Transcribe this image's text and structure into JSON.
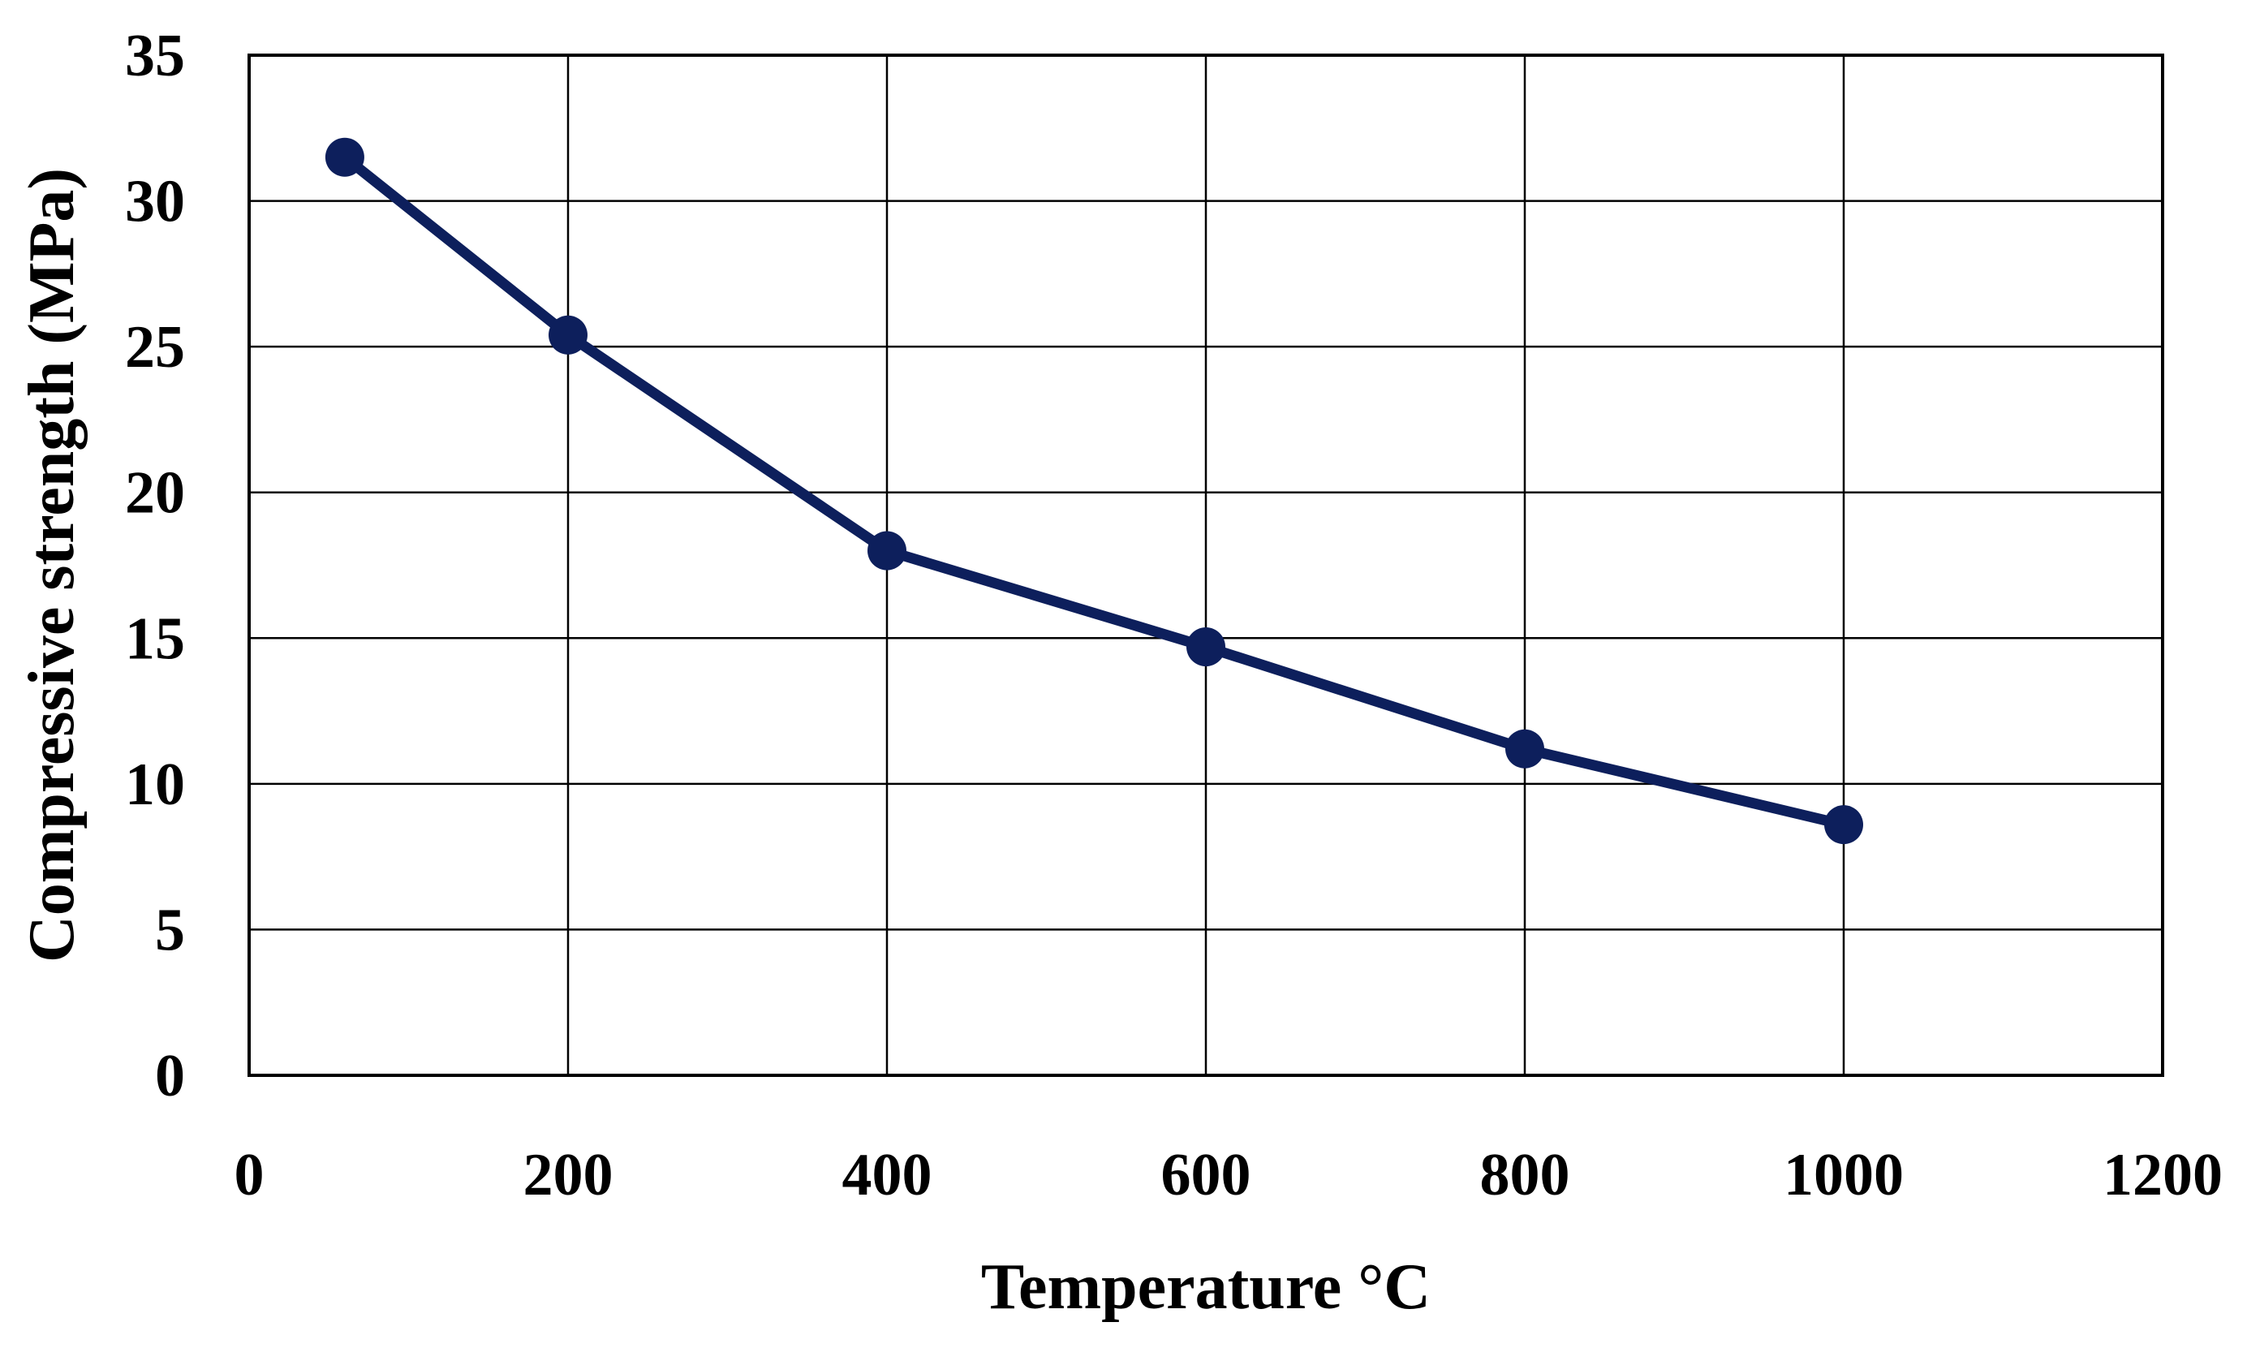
{
  "chart_data": {
    "type": "line",
    "title": "",
    "xlabel": "Temperature °C",
    "ylabel": "Compressive strength (MPa)",
    "xlim": [
      0,
      1200
    ],
    "ylim": [
      0,
      35
    ],
    "xticks": [
      0,
      200,
      400,
      600,
      800,
      1000,
      1200
    ],
    "yticks": [
      0,
      5,
      10,
      15,
      20,
      25,
      30,
      35
    ],
    "grid": true,
    "legend": "none",
    "series": [
      {
        "name": "Compressive strength",
        "color": "#0d1f5c",
        "x": [
          60,
          200,
          400,
          600,
          800,
          1000
        ],
        "y": [
          31.5,
          25.4,
          18.0,
          14.7,
          11.2,
          8.6
        ]
      }
    ]
  }
}
